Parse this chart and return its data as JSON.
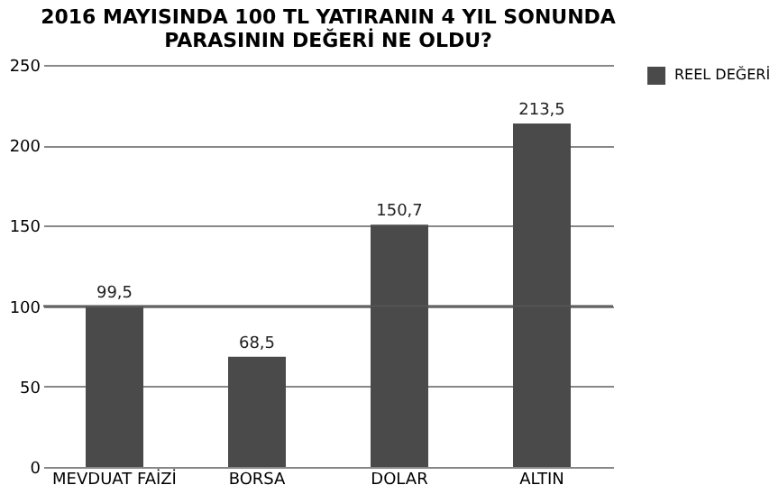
{
  "chart_data": {
    "type": "bar",
    "title": [
      "2016 MAYISINDA 100 TL YATIRANIN 4 YIL SONUNDA",
      "PARASININ DEĞERİ NE OLDU?"
    ],
    "categories": [
      "MEVDUAT FAİZİ",
      "BORSA",
      "DOLAR",
      "ALTIN"
    ],
    "series": [
      {
        "name": "REEL DEĞERİ",
        "color": "#4a4a4a",
        "values": [
          99.5,
          68.5,
          150.7,
          213.5
        ]
      }
    ],
    "value_labels": [
      "99,5",
      "68,5",
      "150,7",
      "213,5"
    ],
    "ylim": [
      0,
      250
    ],
    "yticks": [
      0,
      50,
      100,
      150,
      200,
      250
    ],
    "grid": "y",
    "legend": "right",
    "ref_lines": [
      {
        "axis": "y",
        "value": 100,
        "color": "#555555"
      }
    ]
  }
}
